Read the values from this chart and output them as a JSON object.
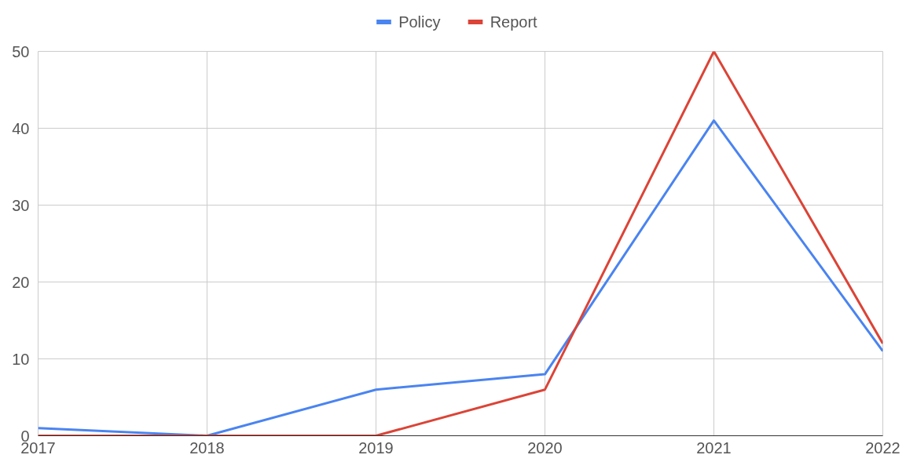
{
  "chart_data": {
    "type": "line",
    "x": [
      2017,
      2018,
      2019,
      2020,
      2021,
      2022
    ],
    "series": [
      {
        "name": "Policy",
        "color": "#4a84f0",
        "values": [
          1,
          0,
          6,
          8,
          41,
          11
        ]
      },
      {
        "name": "Report",
        "color": "#db4437",
        "values": [
          0,
          0,
          0,
          6,
          50,
          12
        ]
      }
    ],
    "xlim": [
      2017,
      2022
    ],
    "xticks": [
      2017,
      2018,
      2019,
      2020,
      2021,
      2022
    ],
    "ylim": [
      0,
      50
    ],
    "yticks": [
      0,
      10,
      20,
      30,
      40,
      50
    ],
    "grid": true,
    "legend": "top",
    "marker": "none",
    "line_style": "solid"
  }
}
